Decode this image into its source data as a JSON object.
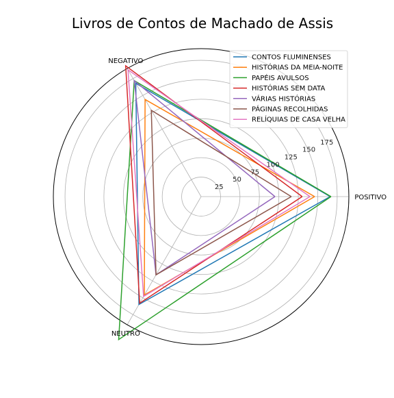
{
  "chart_data": {
    "type": "radar",
    "title": "Livros de Contos de Machado de Assis",
    "axes": [
      "POSITIVO",
      "NEGATIVO",
      "NEUTRO"
    ],
    "rlim": [
      0,
      190
    ],
    "rticks": [
      25,
      50,
      75,
      100,
      125,
      150,
      175
    ],
    "grid": true,
    "legend": "top-right",
    "series": [
      {
        "name": "CONTOS FLUMINENSES",
        "color": "#1f77b4",
        "values": [
          166,
          168,
          160
        ]
      },
      {
        "name": "HISTÓRIAS DA MEIA-NOITE",
        "color": "#ff7f0e",
        "values": [
          146,
          144,
          146
        ]
      },
      {
        "name": "PAPÉIS AVULSOS",
        "color": "#2ca02c",
        "values": [
          167,
          172,
          212
        ]
      },
      {
        "name": "HISTÓRIAS SEM DATA",
        "color": "#d62728",
        "values": [
          130,
          194,
          158
        ]
      },
      {
        "name": "VÁRIAS HISTÓRIAS",
        "color": "#9467bd",
        "values": [
          95,
          172,
          116
        ]
      },
      {
        "name": "PÁGINAS RECOLHIDAS",
        "color": "#8c564b",
        "values": [
          116,
          128,
          116
        ]
      },
      {
        "name": "RELÍQUIAS DE CASA VELHA",
        "color": "#e377c2",
        "values": [
          140,
          188,
          148
        ]
      }
    ]
  }
}
